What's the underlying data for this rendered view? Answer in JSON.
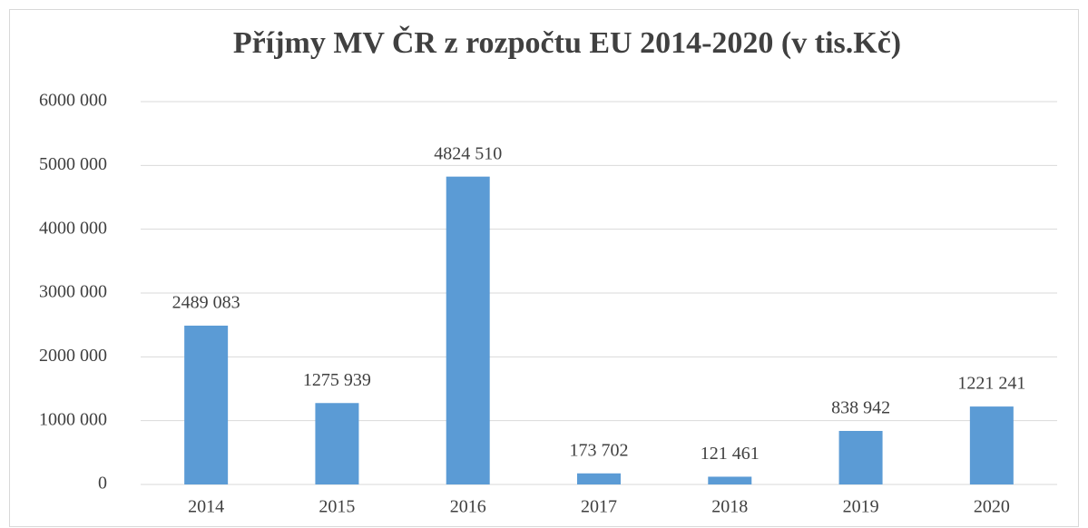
{
  "chart_data": {
    "type": "bar",
    "title": "Příjmy MV ČR z rozpočtu EU 2014-2020 (v tis.Kč)",
    "categories": [
      "2014",
      "2015",
      "2016",
      "2017",
      "2018",
      "2019",
      "2020"
    ],
    "values": [
      2489083,
      1275939,
      4824510,
      173702,
      121461,
      838942,
      1221241
    ],
    "value_labels": [
      "2489 083",
      "1275 939",
      "4824 510",
      "173 702",
      "121 461",
      "838 942",
      "1221 241"
    ],
    "color": "#5b9bd5",
    "ylim": [
      0,
      6000000
    ],
    "yticks": [
      0,
      {
        "value": 1000000,
        "label": "1000 000"
      },
      {
        "value": 2000000,
        "label": "2000 000"
      },
      {
        "value": 3000000,
        "label": "3000 000"
      },
      {
        "value": 4000000,
        "label": "4000 000"
      },
      {
        "value": 5000000,
        "label": "5000 000"
      },
      {
        "value": 6000000,
        "label": "6000 000"
      }
    ],
    "grid": true
  }
}
